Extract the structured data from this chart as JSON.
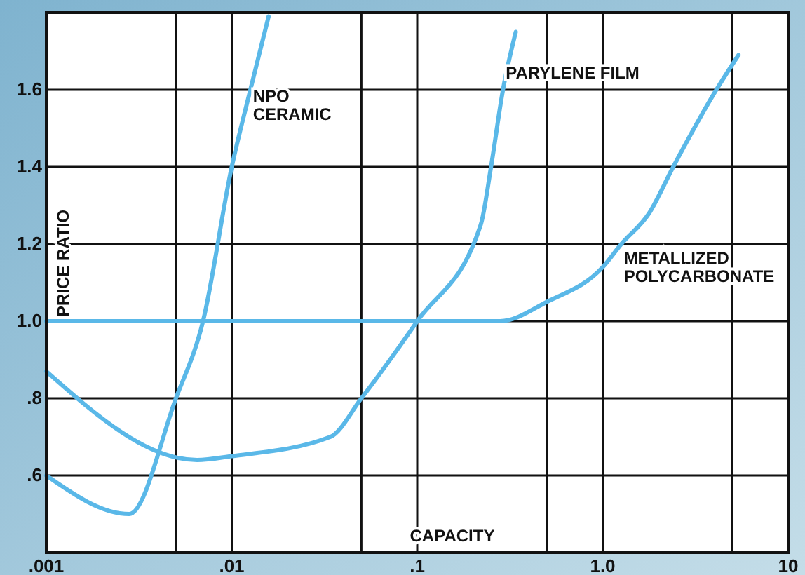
{
  "chart_data": {
    "type": "line",
    "xlabel": "CAPACITY",
    "ylabel": "PRICE RATIO",
    "log": "x",
    "grid": true,
    "legend": false,
    "marker": "none",
    "line_style": "solid",
    "xlim": [
      0.001,
      10
    ],
    "ylim": [
      0.4,
      1.8
    ],
    "xticks": [
      {
        "value": 0.001,
        "label": ".001"
      },
      {
        "value": 0.005,
        "label": null
      },
      {
        "value": 0.01,
        "label": ".01"
      },
      {
        "value": 0.05,
        "label": null
      },
      {
        "value": 0.1,
        "label": ".1"
      },
      {
        "value": 0.5,
        "label": null
      },
      {
        "value": 1,
        "label": "1.0"
      },
      {
        "value": 5,
        "label": null
      },
      {
        "value": 10,
        "label": "10"
      }
    ],
    "yticks": [
      {
        "value": 0.6,
        "label": ".6"
      },
      {
        "value": 0.8,
        "label": ".8"
      },
      {
        "value": 1.0,
        "label": "1.0"
      },
      {
        "value": 1.2,
        "label": "1.2"
      },
      {
        "value": 1.4,
        "label": "1.4"
      },
      {
        "value": 1.6,
        "label": "1.6"
      }
    ],
    "series": [
      {
        "name": "NPO CERAMIC",
        "color": "#5ab8e8",
        "x": [
          0.001,
          0.0028,
          0.005,
          0.007,
          0.01,
          0.0126,
          0.0158
        ],
        "values": [
          0.6,
          0.5,
          0.8,
          1.0,
          1.4,
          1.6,
          1.79
        ]
      },
      {
        "name": "PARYLENE FILM",
        "color": "#5ab8e8",
        "x": [
          0.001,
          0.0065,
          0.01,
          0.034,
          0.05,
          0.1,
          0.22,
          0.25,
          0.29,
          0.34
        ],
        "values": [
          0.87,
          0.64,
          0.65,
          0.7,
          0.8,
          1.0,
          1.25,
          1.4,
          1.6,
          1.75
        ]
      },
      {
        "name": "METALLIZED POLYCARBONATE",
        "color": "#5ab8e8",
        "x": [
          0.001,
          0.28,
          0.5,
          1.0,
          1.26,
          1.78,
          2.4,
          4.1,
          5.4
        ],
        "values": [
          1.0,
          1.0,
          1.05,
          1.14,
          1.2,
          1.28,
          1.4,
          1.6,
          1.69
        ]
      }
    ]
  }
}
